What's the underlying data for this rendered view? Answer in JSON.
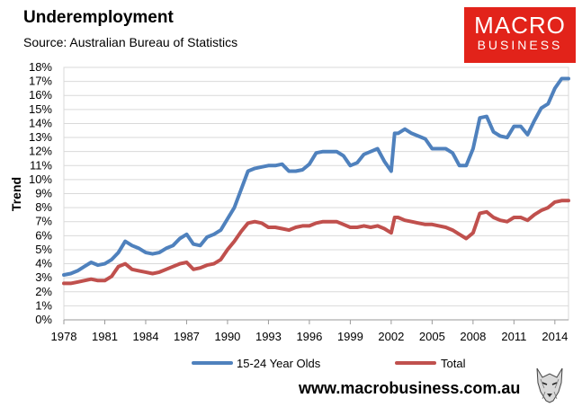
{
  "header": {
    "title": "Underemployment",
    "subtitle": "Source: Australian Bureau of Statistics"
  },
  "logo": {
    "line1": "MACRO",
    "line2": "BUSINESS"
  },
  "footer": {
    "url": "www.macrobusiness.com.au"
  },
  "colors": {
    "youth": "#4f81bd",
    "total": "#c0504d",
    "brand": "#e2231a"
  },
  "chart_data": {
    "type": "line",
    "title": "Underemployment",
    "xlabel": "",
    "ylabel": "Trend",
    "xlim": [
      1978,
      2015
    ],
    "ylim": [
      0,
      18
    ],
    "x_ticks": [
      "1978",
      "1981",
      "1984",
      "1987",
      "1990",
      "1993",
      "1996",
      "1999",
      "2002",
      "2005",
      "2008",
      "2011",
      "2014"
    ],
    "y_ticks": [
      "0%",
      "1%",
      "2%",
      "3%",
      "4%",
      "5%",
      "6%",
      "7%",
      "8%",
      "9%",
      "10%",
      "11%",
      "12%",
      "13%",
      "14%",
      "15%",
      "16%",
      "17%",
      "18%"
    ],
    "grid": true,
    "legend": "bottom",
    "series": [
      {
        "name": "15-24 Year Olds",
        "color": "#4f81bd",
        "x": [
          1978,
          1978.5,
          1979,
          1979.5,
          1980,
          1980.5,
          1981,
          1981.5,
          1982,
          1982.5,
          1983,
          1983.5,
          1984,
          1984.5,
          1985,
          1985.5,
          1986,
          1986.5,
          1987,
          1987.5,
          1988,
          1988.5,
          1989,
          1989.5,
          1990,
          1990.5,
          1991,
          1991.5,
          1992,
          1992.5,
          1993,
          1993.5,
          1994,
          1994.5,
          1995,
          1995.5,
          1996,
          1996.5,
          1997,
          1997.5,
          1998,
          1998.5,
          1999,
          1999.5,
          2000,
          2000.5,
          2001,
          2001.5,
          2002,
          2002.25,
          2002.5,
          2003,
          2003.5,
          2004,
          2004.5,
          2005,
          2005.5,
          2006,
          2006.5,
          2007,
          2007.5,
          2008,
          2008.5,
          2009,
          2009.5,
          2010,
          2010.5,
          2011,
          2011.5,
          2012,
          2012.5,
          2013,
          2013.5,
          2014,
          2014.5,
          2015
        ],
        "values": [
          3.2,
          3.3,
          3.5,
          3.8,
          4.1,
          3.9,
          4.0,
          4.3,
          4.8,
          5.6,
          5.3,
          5.1,
          4.8,
          4.7,
          4.8,
          5.1,
          5.3,
          5.8,
          6.1,
          5.4,
          5.3,
          5.9,
          6.1,
          6.4,
          7.2,
          8.0,
          9.3,
          10.6,
          10.8,
          10.9,
          11.0,
          11.0,
          11.1,
          10.6,
          10.6,
          10.7,
          11.1,
          11.9,
          12.0,
          12.0,
          12.0,
          11.7,
          11.0,
          11.2,
          11.8,
          12.0,
          12.2,
          11.3,
          10.6,
          13.3,
          13.3,
          13.6,
          13.3,
          13.1,
          12.9,
          12.2,
          12.2,
          12.2,
          11.9,
          11.0,
          11.0,
          12.2,
          14.4,
          14.5,
          13.4,
          13.1,
          13.0,
          13.8,
          13.8,
          13.2,
          14.2,
          15.1,
          15.4,
          16.5,
          17.2,
          17.2
        ]
      },
      {
        "name": "Total",
        "color": "#c0504d",
        "x": [
          1978,
          1978.5,
          1979,
          1979.5,
          1980,
          1980.5,
          1981,
          1981.5,
          1982,
          1982.5,
          1983,
          1983.5,
          1984,
          1984.5,
          1985,
          1985.5,
          1986,
          1986.5,
          1987,
          1987.5,
          1988,
          1988.5,
          1989,
          1989.5,
          1990,
          1990.5,
          1991,
          1991.5,
          1992,
          1992.5,
          1993,
          1993.5,
          1994,
          1994.5,
          1995,
          1995.5,
          1996,
          1996.5,
          1997,
          1997.5,
          1998,
          1998.5,
          1999,
          1999.5,
          2000,
          2000.5,
          2001,
          2001.5,
          2002,
          2002.25,
          2002.5,
          2003,
          2003.5,
          2004,
          2004.5,
          2005,
          2005.5,
          2006,
          2006.5,
          2007,
          2007.5,
          2008,
          2008.5,
          2009,
          2009.5,
          2010,
          2010.5,
          2011,
          2011.5,
          2012,
          2012.5,
          2013,
          2013.5,
          2014,
          2014.5,
          2015
        ],
        "values": [
          2.6,
          2.6,
          2.7,
          2.8,
          2.9,
          2.8,
          2.8,
          3.1,
          3.8,
          4.0,
          3.6,
          3.5,
          3.4,
          3.3,
          3.4,
          3.6,
          3.8,
          4.0,
          4.1,
          3.6,
          3.7,
          3.9,
          4.0,
          4.3,
          5.0,
          5.6,
          6.3,
          6.9,
          7.0,
          6.9,
          6.6,
          6.6,
          6.5,
          6.4,
          6.6,
          6.7,
          6.7,
          6.9,
          7.0,
          7.0,
          7.0,
          6.8,
          6.6,
          6.6,
          6.7,
          6.6,
          6.7,
          6.5,
          6.2,
          7.3,
          7.3,
          7.1,
          7.0,
          6.9,
          6.8,
          6.8,
          6.7,
          6.6,
          6.4,
          6.1,
          5.8,
          6.2,
          7.6,
          7.7,
          7.3,
          7.1,
          7.0,
          7.3,
          7.3,
          7.1,
          7.5,
          7.8,
          8.0,
          8.4,
          8.5,
          8.5
        ]
      }
    ]
  }
}
